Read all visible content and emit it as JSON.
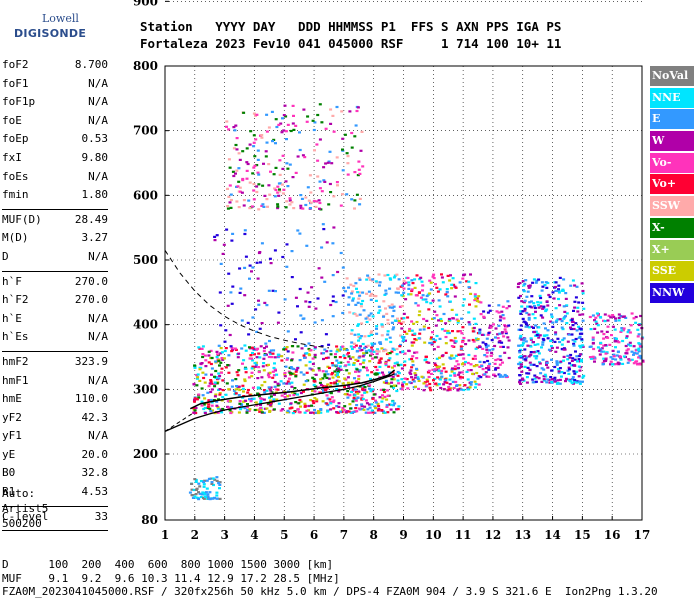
{
  "logo": {
    "line1": "Lowell",
    "line2": "DIGISONDE"
  },
  "header": {
    "line1": "Station   YYYY DAY   DDD HHMMSS P1  FFS S AXN PPS IGA PS",
    "line2": "Fortaleza 2023 Fev10 041 045000 RSF     1 714 100 10+ 11"
  },
  "params": [
    {
      "label": "foF2",
      "value": "8.700"
    },
    {
      "label": "foF1",
      "value": "N/A"
    },
    {
      "label": "foF1p",
      "value": "N/A"
    },
    {
      "label": "foE",
      "value": "N/A"
    },
    {
      "label": "foEp",
      "value": "0.53"
    },
    {
      "label": "fxI",
      "value": "9.80"
    },
    {
      "label": "foEs",
      "value": "N/A"
    },
    {
      "label": "fmin",
      "value": "1.80"
    },
    {
      "label": "MUF(D)",
      "value": "28.49"
    },
    {
      "label": "M(D)",
      "value": "3.27"
    },
    {
      "label": "D",
      "value": "N/A"
    },
    {
      "label": "h`F",
      "value": "270.0"
    },
    {
      "label": "h`F2",
      "value": "270.0"
    },
    {
      "label": "h`E",
      "value": "N/A"
    },
    {
      "label": "h`Es",
      "value": "N/A"
    },
    {
      "label": "hmF2",
      "value": "323.9"
    },
    {
      "label": "hmF1",
      "value": "N/A"
    },
    {
      "label": "hmE",
      "value": "110.0"
    },
    {
      "label": "yF2",
      "value": "42.3"
    },
    {
      "label": "yF1",
      "value": "N/A"
    },
    {
      "label": "yE",
      "value": "20.0"
    },
    {
      "label": "B0",
      "value": "32.8"
    },
    {
      "label": "B1",
      "value": "4.53"
    },
    {
      "label": "C-level",
      "value": "33"
    }
  ],
  "auto": {
    "line1": "Auto:",
    "line2": "Artist5",
    "line3": "500200"
  },
  "legend": [
    {
      "label": "NoVal",
      "color": "#808080"
    },
    {
      "label": "NNE",
      "color": "#00e5ff"
    },
    {
      "label": "E",
      "color": "#3399ff"
    },
    {
      "label": "W",
      "color": "#b000a8"
    },
    {
      "label": "Vo-",
      "color": "#ff33bb"
    },
    {
      "label": "Vo+",
      "color": "#ff0033"
    },
    {
      "label": "SSW",
      "color": "#ffaaaa"
    },
    {
      "label": "X-",
      "color": "#008000"
    },
    {
      "label": "X+",
      "color": "#99cc55"
    },
    {
      "label": "SSE",
      "color": "#cccc00"
    },
    {
      "label": "NNW",
      "color": "#2200dd"
    }
  ],
  "footer": {
    "line1": "D      100  200  400  600  800 1000 1500 3000 [km]",
    "line2": "MUF    9.1  9.2  9.6 10.3 11.4 12.9 17.2 28.5 [MHz]",
    "line3": "FZA0M_2023041045000.RSF / 320fx256h 50 kHz 5.0 km / DPS-4 FZA0M 904 / 3.9 S 321.6 E  Ion2Png 1.3.20"
  },
  "chart_data": {
    "type": "scatter",
    "xlim": [
      1,
      17
    ],
    "ylim": [
      80,
      900
    ],
    "x_ticks": [
      1,
      2,
      3,
      4,
      5,
      6,
      7,
      8,
      9,
      10,
      11,
      12,
      13,
      14,
      15,
      16,
      17
    ],
    "y_ticks": [
      80,
      200,
      300,
      400,
      500,
      600,
      700,
      800,
      900
    ],
    "grid": true,
    "trace_curve": {
      "x": [
        1.85,
        2.2,
        2.8,
        3.5,
        4.3,
        5.2,
        6.2,
        7.0,
        7.6,
        8.1,
        8.5,
        8.7
      ],
      "y": [
        270,
        278,
        283,
        288,
        292,
        296,
        302,
        306,
        310,
        316,
        322,
        330
      ]
    },
    "profile_curve": {
      "x": [
        1.0,
        1.5,
        2.0,
        2.5,
        3.0,
        3.5,
        4.0,
        4.5,
        5.0,
        5.5,
        6.0,
        6.5,
        7.0,
        7.5,
        8.0,
        8.5,
        8.7
      ],
      "y": [
        235,
        245,
        255,
        262,
        268,
        272,
        276,
        280,
        284,
        288,
        292,
        296,
        300,
        305,
        312,
        320,
        324
      ]
    },
    "extrapolated_curve": {
      "x": [
        1.0,
        1.5,
        2.0,
        2.5,
        3.0,
        3.5,
        4.0,
        4.5,
        5.0,
        5.5,
        6.0,
        6.5
      ],
      "y": [
        515,
        480,
        452,
        430,
        413,
        400,
        390,
        382,
        376,
        371,
        367,
        364
      ]
    },
    "echo_regions": [
      {
        "x": [
          1.9,
          8.8
        ],
        "y": [
          265,
          370
        ],
        "colors": [
          "#ff33bb",
          "#b000a8",
          "#008000",
          "#ff0033",
          "#3399ff",
          "#00e5ff",
          "#cccc00"
        ],
        "density": 900
      },
      {
        "x": [
          8.8,
          11.5
        ],
        "y": [
          300,
          480
        ],
        "colors": [
          "#ff33bb",
          "#b000a8",
          "#3399ff",
          "#00e5ff",
          "#cccc00",
          "#ff0033"
        ],
        "density": 420
      },
      {
        "x": [
          11.5,
          12.5
        ],
        "y": [
          320,
          440
        ],
        "colors": [
          "#ff33bb",
          "#3399ff",
          "#2200dd",
          "#b000a8"
        ],
        "density": 120
      },
      {
        "x": [
          12.8,
          15.0
        ],
        "y": [
          310,
          475
        ],
        "colors": [
          "#2200dd",
          "#3399ff",
          "#b000a8",
          "#00e5ff"
        ],
        "density": 420
      },
      {
        "x": [
          15.2,
          17.0
        ],
        "y": [
          340,
          420
        ],
        "colors": [
          "#ff33bb",
          "#3399ff",
          "#00e5ff",
          "#b000a8"
        ],
        "density": 180
      },
      {
        "x": [
          2.5,
          7.0
        ],
        "y": [
          360,
          560
        ],
        "colors": [
          "#2200dd",
          "#b000a8",
          "#3399ff"
        ],
        "density": 120
      },
      {
        "x": [
          3.0,
          7.6
        ],
        "y": [
          580,
          745
        ],
        "colors": [
          "#b000a8",
          "#ff33bb",
          "#ffaaaa",
          "#008000",
          "#3399ff"
        ],
        "density": 260
      },
      {
        "x": [
          7.0,
          9.0
        ],
        "y": [
          360,
          480
        ],
        "colors": [
          "#00e5ff",
          "#ffaaaa",
          "#3399ff"
        ],
        "density": 160
      },
      {
        "x": [
          1.8,
          2.8
        ],
        "y": [
          120,
          160
        ],
        "colors": [
          "#00e5ff",
          "#3399ff",
          "#808080"
        ],
        "density": 70
      }
    ]
  }
}
